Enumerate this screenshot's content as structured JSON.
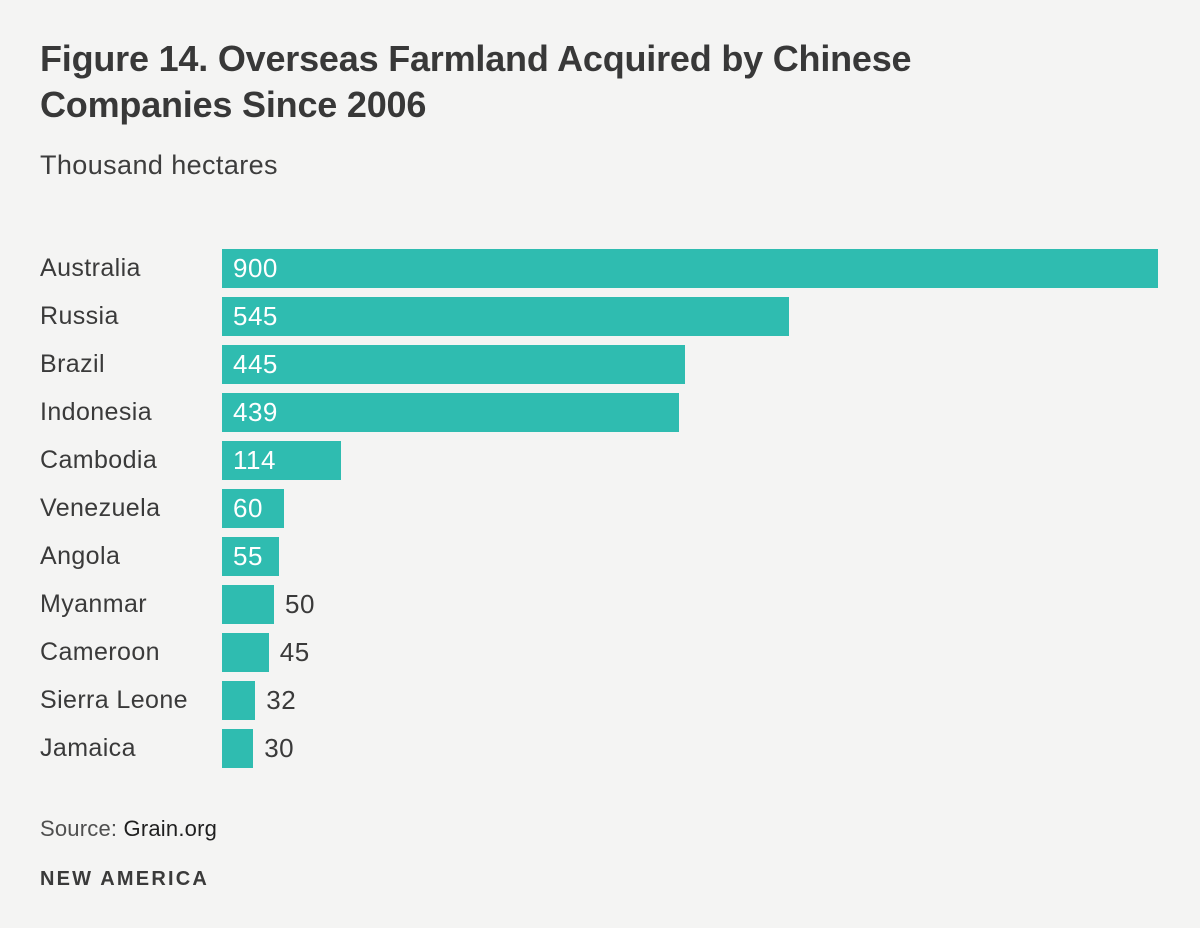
{
  "header": {
    "title": "Figure 14. Overseas Farmland Acquired by Chinese Companies Since 2006",
    "subtitle": "Thousand hectares"
  },
  "chart_data": {
    "type": "bar",
    "orientation": "horizontal",
    "title": "Figure 14. Overseas Farmland Acquired by Chinese Companies Since 2006",
    "unit_label": "Thousand hectares",
    "categories": [
      "Australia",
      "Russia",
      "Brazil",
      "Indonesia",
      "Cambodia",
      "Venezuela",
      "Angola",
      "Myanmar",
      "Cameroon",
      "Sierra Leone",
      "Jamaica"
    ],
    "values": [
      900,
      545,
      445,
      439,
      114,
      60,
      55,
      50,
      45,
      32,
      30
    ],
    "value_label_inside": [
      true,
      true,
      true,
      true,
      true,
      true,
      true,
      false,
      false,
      false,
      false
    ],
    "xlim": [
      0,
      900
    ],
    "grid": false,
    "legend": false,
    "bar_color": "#2fbcb0",
    "value_label_color_inside": "#ffffff",
    "value_label_color_outside": "#3a3a3a"
  },
  "footer": {
    "source_label": "Source:",
    "source_value": "Grain.org",
    "brand": "NEW AMERICA"
  },
  "colors": {
    "background": "#f4f4f3",
    "bar": "#2fbcb0",
    "text": "#3a3a3a"
  }
}
